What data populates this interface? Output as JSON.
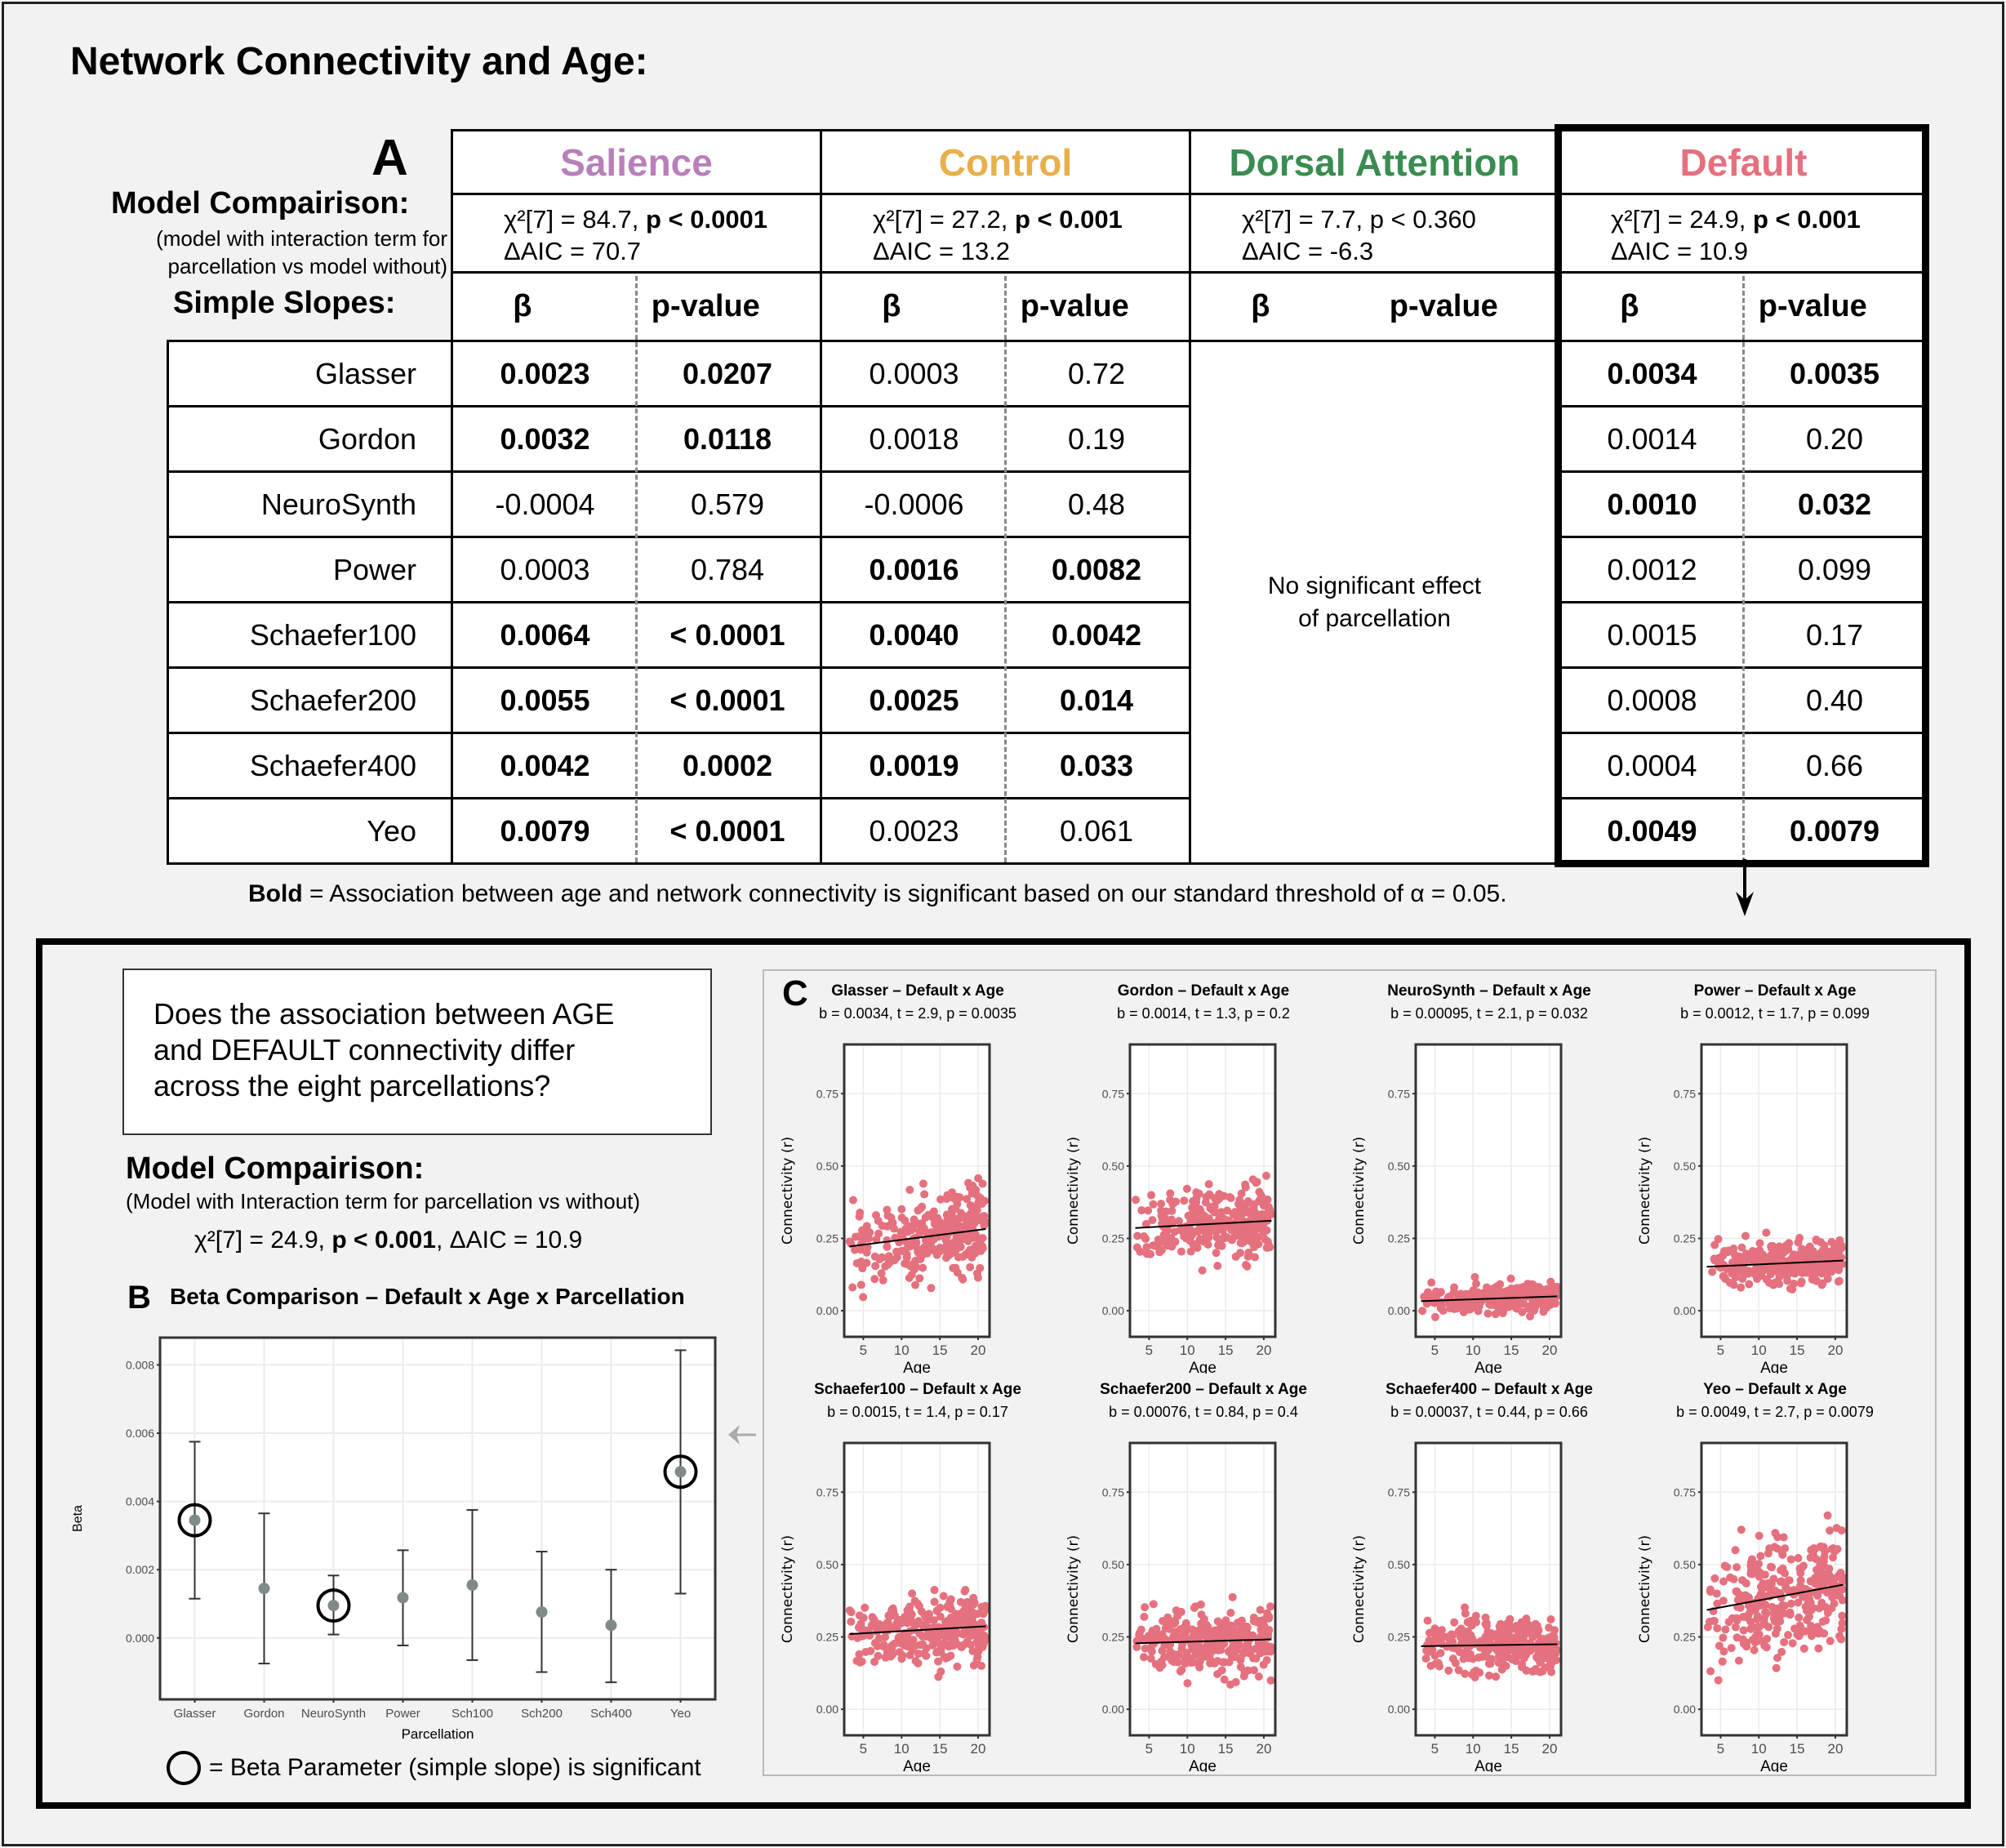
{
  "title": "Network Connectivity and Age:",
  "panel_a": {
    "label": "A",
    "model_comparison_label": "Model Compairison:",
    "model_comparison_sub1": "(model with interaction term for",
    "model_comparison_sub2": "parcellation vs model without)",
    "simple_slopes_label": "Simple Slopes:",
    "beta_header": "β",
    "p_header": "p-value",
    "no_effect_line1": "No significant effect",
    "no_effect_line2": "of parcellation",
    "rows": [
      "Glasser",
      "Gordon",
      "NeuroSynth",
      "Power",
      "Schaefer100",
      "Schaefer200",
      "Schaefer400",
      "Yeo"
    ],
    "networks": [
      {
        "name": "Salience",
        "color": "#b97fbb",
        "chi": "χ²[7] = 84.7, ",
        "p": "p < 0.0001",
        "p_bold": true,
        "aic": "ΔAIC = 70.7",
        "values": [
          {
            "b": "0.0023",
            "p": "0.0207",
            "sig": true
          },
          {
            "b": "0.0032",
            "p": "0.0118",
            "sig": true
          },
          {
            "b": "-0.0004",
            "p": "0.579",
            "sig": false
          },
          {
            "b": "0.0003",
            "p": "0.784",
            "sig": false
          },
          {
            "b": "0.0064",
            "p": "< 0.0001",
            "sig": true
          },
          {
            "b": "0.0055",
            "p": "< 0.0001",
            "sig": true
          },
          {
            "b": "0.0042",
            "p": "0.0002",
            "sig": true
          },
          {
            "b": "0.0079",
            "p": "< 0.0001",
            "sig": true
          }
        ]
      },
      {
        "name": "Control",
        "color": "#e8b04a",
        "chi": "χ²[7] = 27.2, ",
        "p": "p < 0.001",
        "p_bold": true,
        "aic": "ΔAIC = 13.2",
        "values": [
          {
            "b": "0.0003",
            "p": "0.72",
            "sig": false
          },
          {
            "b": "0.0018",
            "p": "0.19",
            "sig": false
          },
          {
            "b": "-0.0006",
            "p": "0.48",
            "sig": false
          },
          {
            "b": "0.0016",
            "p": "0.0082",
            "sig": true
          },
          {
            "b": "0.0040",
            "p": "0.0042",
            "sig": true
          },
          {
            "b": "0.0025",
            "p": "0.014",
            "sig": true
          },
          {
            "b": "0.0019",
            "p": "0.033",
            "sig": true
          },
          {
            "b": "0.0023",
            "p": "0.061",
            "sig": false
          }
        ]
      },
      {
        "name": "Dorsal Attention",
        "color": "#3a8c50",
        "chi": "χ²[7] = 7.7, ",
        "p": "p < 0.360",
        "p_bold": false,
        "aic": "ΔAIC = -6.3",
        "values": []
      },
      {
        "name": "Default",
        "color": "#e5707e",
        "chi": "χ²[7] = 24.9, ",
        "p": "p < 0.001",
        "p_bold": true,
        "aic": "ΔAIC = 10.9",
        "values": [
          {
            "b": "0.0034",
            "p": "0.0035",
            "sig": true
          },
          {
            "b": "0.0014",
            "p": "0.20",
            "sig": false
          },
          {
            "b": "0.0010",
            "p": "0.032",
            "sig": true
          },
          {
            "b": "0.0012",
            "p": "0.099",
            "sig": false
          },
          {
            "b": "0.0015",
            "p": "0.17",
            "sig": false
          },
          {
            "b": "0.0008",
            "p": "0.40",
            "sig": false
          },
          {
            "b": "0.0004",
            "p": "0.66",
            "sig": false
          },
          {
            "b": "0.0049",
            "p": "0.0079",
            "sig": true
          }
        ]
      }
    ],
    "legend_bold": "Bold",
    "legend_text": " = Association between age and network connectivity is significant based on our standard threshold of α = 0.05."
  },
  "question": {
    "line1": "Does the association between AGE",
    "line2": "and DEFAULT connectivity differ",
    "line3": "across the eight parcellations?"
  },
  "model_comparison_2": {
    "label": "Model Compairison:",
    "sub": "(Model with Interaction term for parcellation vs without)",
    "chi": "χ²[7] = 24.9, ",
    "p": "p < 0.001",
    "aic": ", ΔAIC = 10.9"
  },
  "panel_b": {
    "label": "B",
    "title": "Beta Comparison – Default x Age x Parcellation",
    "sig_legend": "= Beta Parameter (simple slope) is significant"
  },
  "panel_c": {
    "label": "C"
  },
  "chart_data": [
    {
      "type": "scatter",
      "title": "Beta Comparison – Default x Age x Parcellation",
      "xlabel": "Parcellation",
      "ylabel": "Beta",
      "categories": [
        "Glasser",
        "Gordon",
        "NeuroSynth",
        "Power",
        "Sch100",
        "Sch200",
        "Sch400",
        "Yeo"
      ],
      "values": [
        0.00345,
        0.00145,
        0.00095,
        0.00118,
        0.00155,
        0.00076,
        0.00037,
        0.00487
      ],
      "ci_low": [
        0.00115,
        -0.00075,
        0.0001,
        -0.00022,
        -0.00065,
        -0.001,
        -0.0013,
        0.0013
      ],
      "ci_high": [
        0.00575,
        0.00365,
        0.00183,
        0.00257,
        0.00375,
        0.00253,
        0.002,
        0.00843
      ],
      "significant": [
        true,
        false,
        true,
        false,
        false,
        false,
        false,
        true
      ],
      "yticks": [
        "0.000",
        "0.002",
        "0.004",
        "0.006",
        "0.008"
      ],
      "ylim": [
        -0.0018,
        0.0088
      ],
      "grid": true,
      "point_color": "#7f8a8a"
    },
    {
      "type": "scatter",
      "subplot_titles": [
        {
          "title": "Glasser – Default x Age",
          "stats": "b = 0.0034, t = 2.9, p = 0.0035",
          "b": 0.0034,
          "intercept": 0.222,
          "center": 0.25,
          "spread": 0.11
        },
        {
          "title": "Gordon – Default x Age",
          "stats": "b = 0.0014, t = 1.3, p = 0.2",
          "b": 0.0014,
          "intercept": 0.286,
          "center": 0.3,
          "spread": 0.1
        },
        {
          "title": "NeuroSynth – Default x Age",
          "stats": "b = 0.00095, t = 2.1, p = 0.032",
          "b": 0.00095,
          "intercept": 0.033,
          "center": 0.045,
          "spread": 0.04
        },
        {
          "title": "Power – Default x Age",
          "stats": "b = 0.0012, t = 1.7, p = 0.099",
          "b": 0.0012,
          "intercept": 0.152,
          "center": 0.165,
          "spread": 0.06
        },
        {
          "title": "Schaefer100 – Default x Age",
          "stats": "b = 0.0015, t = 1.4, p = 0.17",
          "b": 0.0015,
          "intercept": 0.26,
          "center": 0.28,
          "spread": 0.1
        },
        {
          "title": "Schaefer200 – Default x Age",
          "stats": "b = 0.00076, t = 0.84, p = 0.4",
          "b": 0.00076,
          "intercept": 0.228,
          "center": 0.24,
          "spread": 0.09
        },
        {
          "title": "Schaefer400 – Default x Age",
          "stats": "b = 0.00037, t = 0.44, p = 0.66",
          "b": 0.00037,
          "intercept": 0.218,
          "center": 0.225,
          "spread": 0.08
        },
        {
          "title": "Yeo – Default x Age",
          "stats": "b = 0.0049, t = 2.7, p = 0.0079",
          "b": 0.0049,
          "intercept": 0.343,
          "center": 0.42,
          "spread": 0.17
        }
      ],
      "xlabel": "Age",
      "ylabel": "Connectivity (r)",
      "xticks": [
        "5",
        "10",
        "15",
        "20"
      ],
      "yticks": [
        "0.00",
        "0.25",
        "0.50",
        "0.75"
      ],
      "xlim": [
        2.5,
        21.5
      ],
      "ylim": [
        -0.09,
        0.92
      ],
      "grid": true,
      "point_color": "#e5707e"
    }
  ]
}
